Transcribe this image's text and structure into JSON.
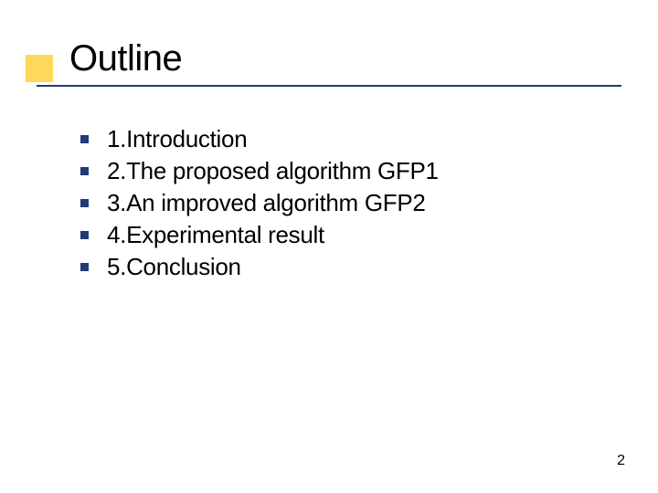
{
  "slide": {
    "title": "Outline",
    "title_fontsize": 40,
    "title_color": "#000000",
    "accent_box_color": "#fed85a",
    "rule_color": "#1f3b78",
    "bullet_color": "#1f3b78",
    "bullet_fontsize": 26,
    "background_color": "#ffffff",
    "items": [
      {
        "text": "1.Introduction"
      },
      {
        "text": "2.The proposed algorithm GFP1"
      },
      {
        "text": "3.An improved algorithm GFP2"
      },
      {
        "text": "4.Experimental result"
      },
      {
        "text": "5.Conclusion"
      }
    ],
    "page_number": "2",
    "page_number_fontsize": 16
  }
}
